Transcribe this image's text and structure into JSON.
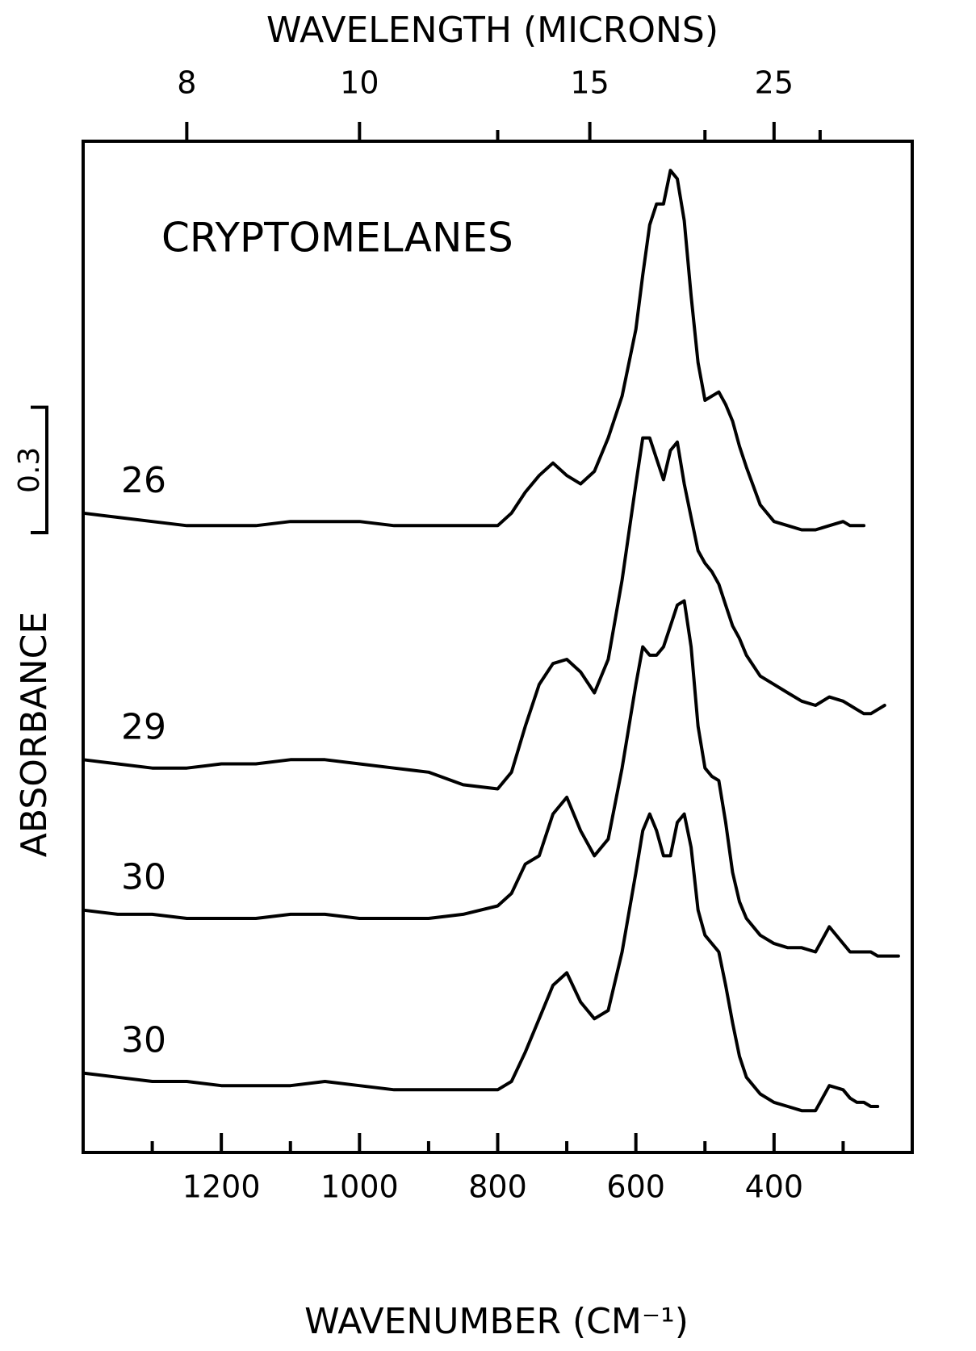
{
  "chart_data": {
    "type": "line",
    "x2label": "WAVELENGTH (MICRONS)",
    "xlabel": "WAVENUMBER (CM⁻¹)",
    "ylabel": "ABSORBANCE",
    "annotation": "CRYPTOMELANES",
    "scale_bar": 0.3,
    "xlim": [
      1400,
      200
    ],
    "xticks": [
      1200,
      1000,
      800,
      600,
      400
    ],
    "xminor_ticks": [
      1300,
      1100,
      900,
      700,
      500,
      300
    ],
    "x2ticks": [
      8,
      10,
      15,
      25
    ],
    "x2minor_ticks": [
      12.5,
      20,
      30
    ],
    "ylim": [
      0,
      2.42
    ],
    "color": "#000000",
    "x": [
      1400,
      1350,
      1300,
      1250,
      1200,
      1150,
      1100,
      1050,
      1000,
      950,
      900,
      850,
      800,
      780,
      760,
      740,
      720,
      700,
      680,
      660,
      640,
      620,
      600,
      590,
      580,
      570,
      560,
      550,
      540,
      530,
      520,
      510,
      500,
      490,
      480,
      470,
      460,
      450,
      440,
      420,
      400,
      380,
      360,
      340,
      320,
      300,
      290,
      280,
      270,
      260,
      250,
      240,
      230,
      220
    ],
    "series": [
      {
        "name": "26",
        "values": [
          1.53,
          1.52,
          1.51,
          1.5,
          1.5,
          1.5,
          1.51,
          1.51,
          1.51,
          1.5,
          1.5,
          1.5,
          1.5,
          1.53,
          1.58,
          1.62,
          1.65,
          1.62,
          1.6,
          1.63,
          1.71,
          1.81,
          1.97,
          2.1,
          2.22,
          2.27,
          2.27,
          2.35,
          2.33,
          2.23,
          2.05,
          1.89,
          1.8,
          1.81,
          1.82,
          1.79,
          1.75,
          1.69,
          1.64,
          1.55,
          1.51,
          1.5,
          1.49,
          1.49,
          1.5,
          1.51,
          1.5,
          1.5,
          1.5,
          null,
          null,
          null,
          null,
          null
        ]
      },
      {
        "name": "29",
        "values": [
          0.94,
          0.93,
          0.92,
          0.92,
          0.93,
          0.93,
          0.94,
          0.94,
          0.93,
          0.92,
          0.91,
          0.88,
          0.87,
          0.91,
          1.02,
          1.12,
          1.17,
          1.18,
          1.15,
          1.1,
          1.18,
          1.37,
          1.6,
          1.71,
          1.71,
          1.66,
          1.61,
          1.68,
          1.7,
          1.6,
          1.52,
          1.44,
          1.41,
          1.39,
          1.36,
          1.31,
          1.26,
          1.23,
          1.19,
          1.14,
          1.12,
          1.1,
          1.08,
          1.07,
          1.09,
          1.08,
          1.07,
          1.06,
          1.05,
          1.05,
          1.06,
          1.07,
          null,
          null
        ]
      },
      {
        "name": "30",
        "values": [
          0.58,
          0.57,
          0.57,
          0.56,
          0.56,
          0.56,
          0.57,
          0.57,
          0.56,
          0.56,
          0.56,
          0.57,
          0.59,
          0.62,
          0.69,
          0.71,
          0.81,
          0.85,
          0.77,
          0.71,
          0.75,
          0.92,
          1.12,
          1.21,
          1.19,
          1.19,
          1.21,
          1.26,
          1.31,
          1.32,
          1.21,
          1.02,
          0.92,
          0.9,
          0.89,
          0.79,
          0.67,
          0.6,
          0.56,
          0.52,
          0.5,
          0.49,
          0.49,
          0.48,
          0.54,
          0.5,
          0.48,
          0.48,
          0.48,
          0.48,
          0.47,
          0.47,
          0.47,
          0.47
        ]
      },
      {
        "name": "30",
        "values": [
          0.19,
          0.18,
          0.17,
          0.17,
          0.16,
          0.16,
          0.16,
          0.17,
          0.16,
          0.15,
          0.15,
          0.15,
          0.15,
          0.17,
          0.24,
          0.32,
          0.4,
          0.43,
          0.36,
          0.32,
          0.34,
          0.48,
          0.67,
          0.77,
          0.81,
          0.77,
          0.71,
          0.71,
          0.79,
          0.81,
          0.73,
          0.58,
          0.52,
          0.5,
          0.48,
          0.4,
          0.31,
          0.23,
          0.18,
          0.14,
          0.12,
          0.11,
          0.1,
          0.1,
          0.16,
          0.15,
          0.13,
          0.12,
          0.12,
          0.11,
          0.11,
          null,
          null,
          null
        ]
      }
    ]
  }
}
